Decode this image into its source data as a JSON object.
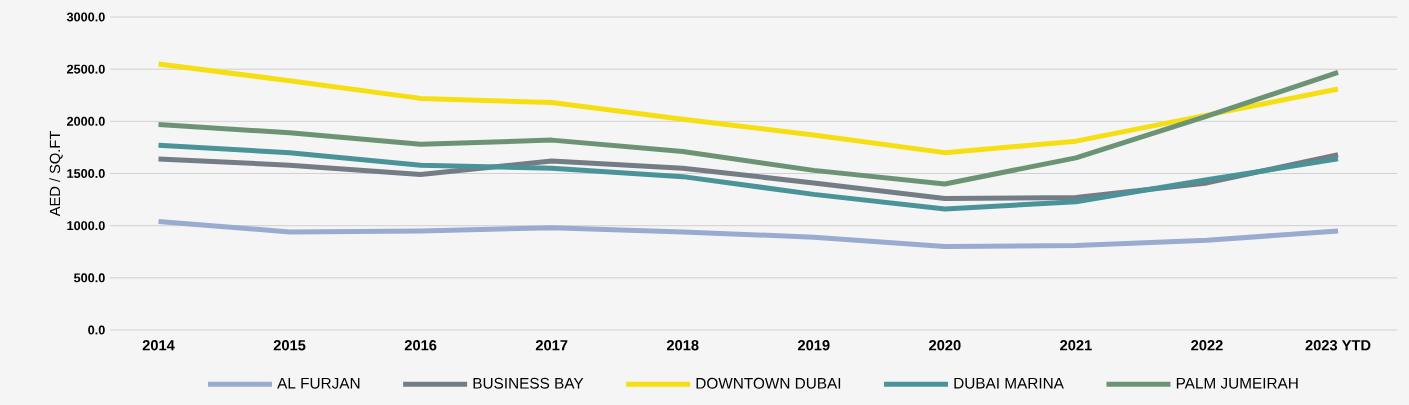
{
  "chart_data": {
    "type": "line",
    "ylabel": "AED / SQ.FT",
    "categories": [
      "2014",
      "2015",
      "2016",
      "2017",
      "2018",
      "2019",
      "2020",
      "2021",
      "2022",
      "2023 YTD"
    ],
    "series": [
      {
        "name": "AL FURJAN",
        "color": "#9aabd0",
        "values": [
          1040,
          940,
          950,
          980,
          940,
          890,
          800,
          810,
          860,
          950
        ]
      },
      {
        "name": "BUSINESS BAY",
        "color": "#747c86",
        "values": [
          1640,
          1580,
          1490,
          1620,
          1550,
          1410,
          1260,
          1270,
          1410,
          1680
        ]
      },
      {
        "name": "DOWNTOWN DUBAI",
        "color": "#f5df12",
        "values": [
          2550,
          2390,
          2220,
          2180,
          2020,
          1870,
          1700,
          1810,
          2060,
          2310
        ]
      },
      {
        "name": "DUBAI MARINA",
        "color": "#4a9499",
        "values": [
          1770,
          1700,
          1580,
          1550,
          1470,
          1300,
          1160,
          1230,
          1440,
          1640
        ]
      },
      {
        "name": "PALM JUMEIRAH",
        "color": "#6c9474",
        "values": [
          1970,
          1890,
          1780,
          1820,
          1710,
          1530,
          1400,
          1650,
          2050,
          2470
        ]
      }
    ],
    "ylim": [
      0,
      3000
    ],
    "yticks": [
      {
        "value": 0,
        "label": "0.0"
      },
      {
        "value": 500,
        "label": "500.0"
      },
      {
        "value": 1000,
        "label": "1000.0"
      },
      {
        "value": 1500,
        "label": "1500.0"
      },
      {
        "value": 2000,
        "label": "2000.0"
      },
      {
        "value": 2500,
        "label": "2500.0"
      },
      {
        "value": 3000,
        "label": "3000.0"
      }
    ],
    "grid": "y",
    "legend": "bottom",
    "marker": "none",
    "line_style": "solid"
  }
}
